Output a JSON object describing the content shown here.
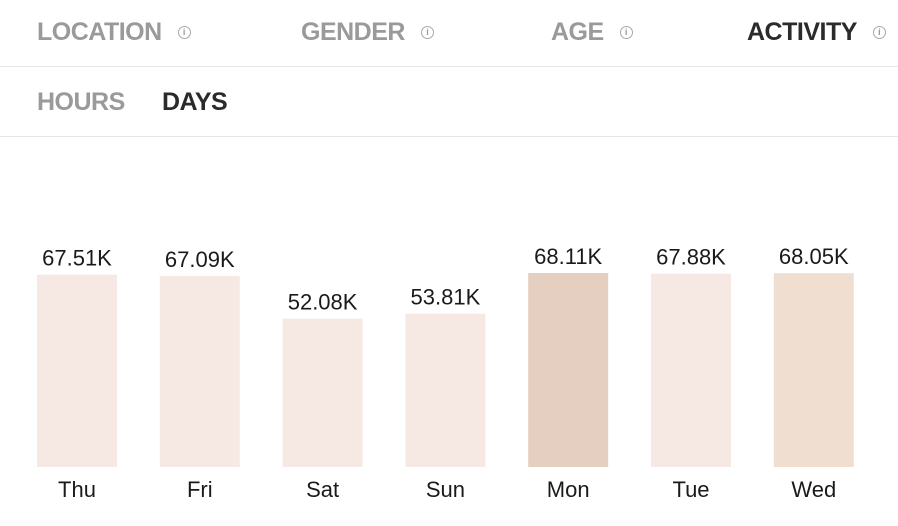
{
  "tabs": [
    {
      "label": "LOCATION",
      "active": false
    },
    {
      "label": "GENDER",
      "active": false
    },
    {
      "label": "AGE",
      "active": false
    },
    {
      "label": "ACTIVITY",
      "active": true
    }
  ],
  "info_icon": {
    "glyph": "i",
    "icon": "info-icon"
  },
  "subtabs": [
    {
      "label": "HOURS",
      "active": false
    },
    {
      "label": "DAYS",
      "active": true
    }
  ],
  "chart_data": {
    "type": "bar",
    "categories": [
      "Thu",
      "Fri",
      "Sat",
      "Sun",
      "Mon",
      "Tue",
      "Wed"
    ],
    "values": [
      67.51,
      67.09,
      52.08,
      53.81,
      68.11,
      67.88,
      68.05
    ],
    "value_labels": [
      "67.51K",
      "67.09K",
      "52.08K",
      "53.81K",
      "68.11K",
      "67.88K",
      "68.05K"
    ],
    "colors": [
      "#f6e9e3",
      "#f6e9e3",
      "#f6e9e3",
      "#f6e9e3",
      "#e5cfc0",
      "#f6e9e3",
      "#f0dfd1"
    ],
    "ylim": [
      0,
      68.11
    ],
    "grid": false,
    "legend": "none"
  }
}
